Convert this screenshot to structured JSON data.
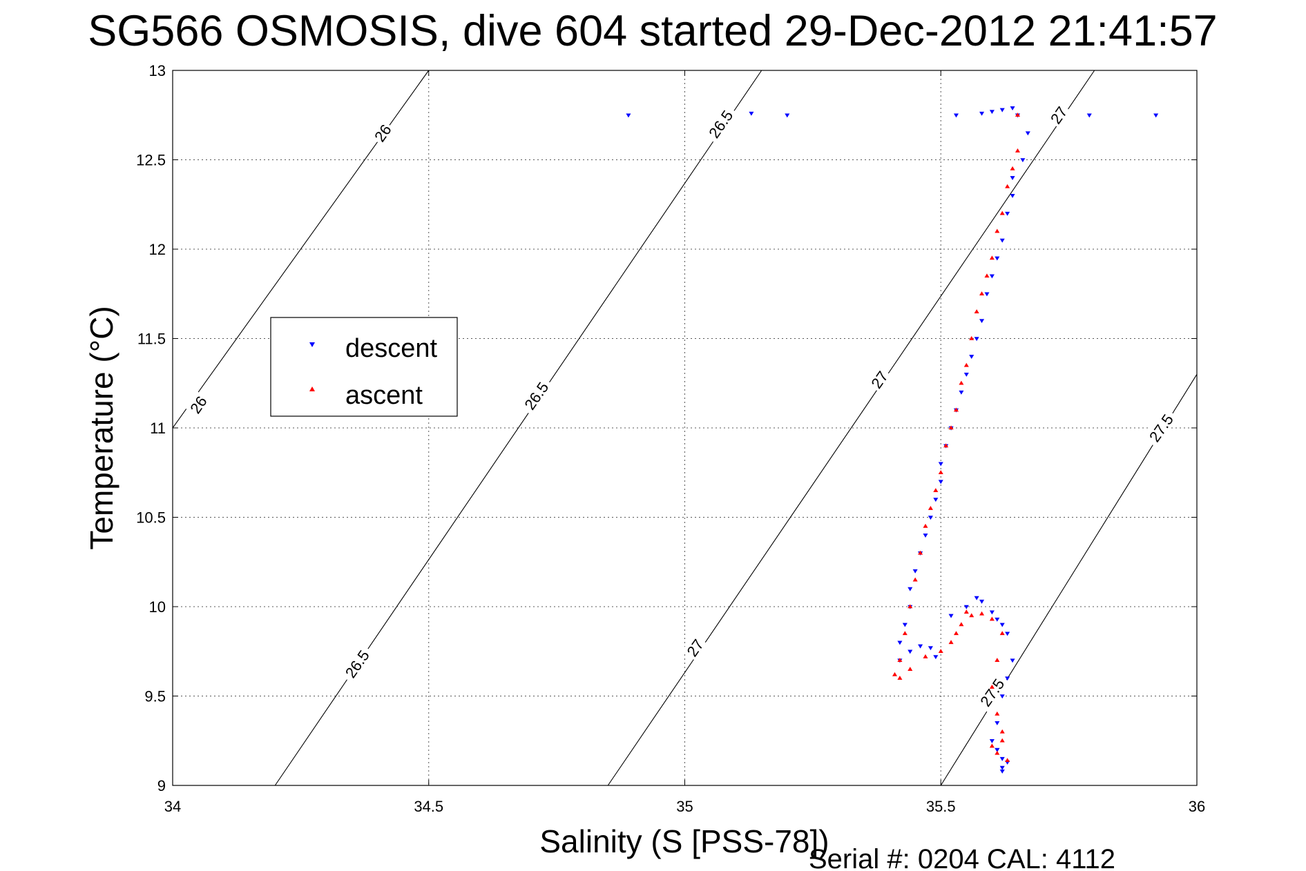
{
  "chart_data": {
    "type": "scatter",
    "title": "SG566 OSMOSIS, dive 604 started 29-Dec-2012 21:41:57",
    "xlabel": "Salinity (S [PSS-78])",
    "ylabel": "Temperature (°C)",
    "xlim": [
      34,
      36
    ],
    "ylim": [
      9,
      13
    ],
    "xticks": [
      "34",
      "34.5",
      "35",
      "35.5",
      "36"
    ],
    "yticks": [
      "9",
      "9.5",
      "10",
      "10.5",
      "11",
      "11.5",
      "12",
      "12.5",
      "13"
    ],
    "grid": true,
    "legend_position": "upper-left",
    "footer": "Serial #: 0204  CAL: 4112",
    "density_contours": [
      {
        "value": "26",
        "x": [
          34.5,
          34.0
        ],
        "y": [
          13,
          11.0
        ]
      },
      {
        "value": "26.5",
        "x": [
          34.2,
          35.15
        ],
        "y": [
          9,
          13
        ]
      },
      {
        "value": "27",
        "x": [
          34.85,
          35.8
        ],
        "y": [
          9,
          13
        ]
      },
      {
        "value": "27.5",
        "x": [
          35.5,
          36.0
        ],
        "y": [
          9,
          11.3
        ]
      }
    ],
    "contour_labels": [
      {
        "text": "26",
        "x": 34.41,
        "y": 12.65
      },
      {
        "text": "26",
        "x": 34.05,
        "y": 11.13
      },
      {
        "text": "26.5",
        "x": 35.07,
        "y": 12.7
      },
      {
        "text": "26.5",
        "x": 34.71,
        "y": 11.18
      },
      {
        "text": "26.5",
        "x": 34.36,
        "y": 9.68
      },
      {
        "text": "27",
        "x": 35.73,
        "y": 12.75
      },
      {
        "text": "27",
        "x": 35.38,
        "y": 11.27
      },
      {
        "text": "27",
        "x": 35.02,
        "y": 9.77
      },
      {
        "text": "27.5",
        "x": 35.93,
        "y": 11.0
      },
      {
        "text": "27.5",
        "x": 35.6,
        "y": 9.52
      }
    ],
    "series": [
      {
        "name": "descent",
        "color": "#0000ff",
        "marker": "triangle-down",
        "x": [
          34.89,
          35.13,
          35.2,
          35.53,
          35.58,
          35.6,
          35.62,
          35.64,
          35.65,
          35.79,
          35.92,
          35.67,
          35.66,
          35.64,
          35.64,
          35.63,
          35.62,
          35.61,
          35.6,
          35.59,
          35.58,
          35.57,
          35.56,
          35.55,
          35.54,
          35.53,
          35.52,
          35.51,
          35.5,
          35.5,
          35.49,
          35.48,
          35.47,
          35.46,
          35.45,
          35.44,
          35.44,
          35.43,
          35.42,
          35.42,
          35.44,
          35.46,
          35.48,
          35.49,
          35.52,
          35.55,
          35.57,
          35.58,
          35.6,
          35.61,
          35.62,
          35.63,
          35.64,
          35.63,
          35.62,
          35.61,
          35.6,
          35.61,
          35.62,
          35.63,
          35.62,
          35.61,
          35.62
        ],
        "y": [
          12.75,
          12.76,
          12.75,
          12.75,
          12.76,
          12.77,
          12.78,
          12.79,
          12.75,
          12.75,
          12.75,
          12.65,
          12.5,
          12.4,
          12.3,
          12.2,
          12.05,
          11.95,
          11.85,
          11.75,
          11.6,
          11.5,
          11.4,
          11.3,
          11.2,
          11.1,
          11.0,
          10.9,
          10.8,
          10.7,
          10.6,
          10.5,
          10.4,
          10.3,
          10.2,
          10.1,
          10.0,
          9.9,
          9.8,
          9.7,
          9.75,
          9.78,
          9.77,
          9.72,
          9.95,
          10.0,
          10.05,
          10.03,
          9.97,
          9.93,
          9.9,
          9.85,
          9.7,
          9.6,
          9.5,
          9.35,
          9.25,
          9.2,
          9.15,
          9.13,
          9.1,
          9.2,
          9.08
        ]
      },
      {
        "name": "ascent",
        "color": "#ff0000",
        "marker": "triangle-up",
        "x": [
          35.65,
          35.65,
          35.64,
          35.63,
          35.62,
          35.61,
          35.6,
          35.59,
          35.58,
          35.57,
          35.56,
          35.55,
          35.54,
          35.53,
          35.52,
          35.51,
          35.5,
          35.49,
          35.48,
          35.47,
          35.46,
          35.45,
          35.44,
          35.43,
          35.42,
          35.41,
          35.42,
          35.44,
          35.47,
          35.5,
          35.52,
          35.53,
          35.54,
          35.55,
          35.56,
          35.58,
          35.6,
          35.62,
          35.61,
          35.6,
          35.61,
          35.62,
          35.62,
          35.6,
          35.61,
          35.63
        ],
        "y": [
          12.75,
          12.55,
          12.45,
          12.35,
          12.2,
          12.1,
          11.95,
          11.85,
          11.75,
          11.65,
          11.5,
          11.35,
          11.25,
          11.1,
          11.0,
          10.9,
          10.75,
          10.65,
          10.55,
          10.45,
          10.3,
          10.15,
          10.0,
          9.85,
          9.7,
          9.62,
          9.6,
          9.65,
          9.72,
          9.75,
          9.8,
          9.85,
          9.9,
          9.97,
          9.95,
          9.96,
          9.93,
          9.85,
          9.7,
          9.55,
          9.4,
          9.3,
          9.25,
          9.22,
          9.18,
          9.14
        ]
      }
    ]
  }
}
